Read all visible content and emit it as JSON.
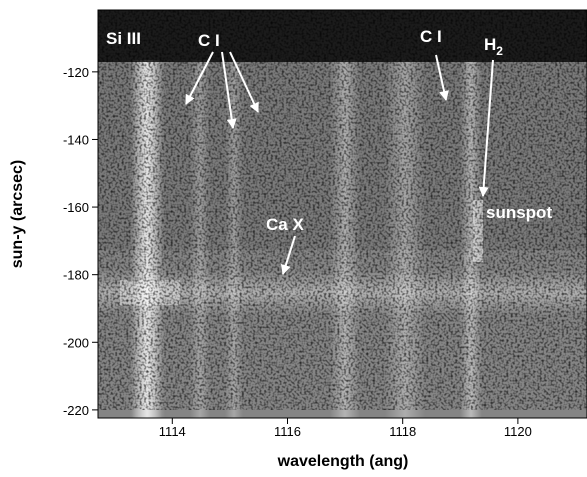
{
  "chart_data": {
    "type": "image",
    "xlabel": "wavelength (ang)",
    "ylabel": "sun-y (arcsec)",
    "xlim": [
      1112.71,
      1121.2
    ],
    "ylim": [
      -222.4,
      -101.7
    ],
    "xticks": [
      1114,
      1116,
      1118,
      1120
    ],
    "yticks": [
      -120,
      -140,
      -160,
      -180,
      -200,
      -220
    ],
    "annotations": [
      {
        "text": "Si III"
      },
      {
        "text": "C I"
      },
      {
        "text": "C I"
      },
      {
        "text": "H",
        "subscript": "2"
      },
      {
        "text": "sunspot"
      },
      {
        "text": "Ca X"
      }
    ]
  }
}
